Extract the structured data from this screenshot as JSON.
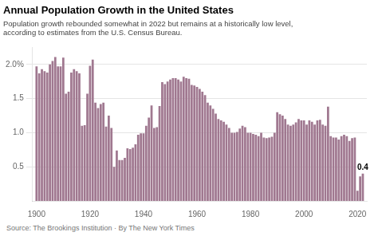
{
  "chart_data": {
    "type": "bar",
    "title": "Annual Population Growth in the United States",
    "subtitle": "Population growth rebounded somewhat in 2022 but remains at a historically low level,\naccording to estimates from the U.S. Census Bureau.",
    "source": "Source: The Brookings Institution   ·   By The New York Times",
    "color": "#a07890",
    "xlim": [
      1898.5,
      2023.5
    ],
    "xticks": [
      1900,
      1920,
      1940,
      1960,
      1980,
      2000,
      2020
    ],
    "ylim": [
      0,
      2.25
    ],
    "yticks": [
      0.5,
      {
        "value": 1.0,
        "label": "1.0"
      },
      1.5,
      {
        "value": 2.0,
        "label": "2.0%"
      }
    ],
    "grid": true,
    "annotations": [
      {
        "x": 2022,
        "y": 0.4,
        "text": "0.4"
      }
    ],
    "x": [
      1900,
      1901,
      1902,
      1903,
      1904,
      1905,
      1906,
      1907,
      1908,
      1909,
      1910,
      1911,
      1912,
      1913,
      1914,
      1915,
      1916,
      1917,
      1918,
      1919,
      1920,
      1921,
      1922,
      1923,
      1924,
      1925,
      1926,
      1927,
      1928,
      1929,
      1930,
      1931,
      1932,
      1933,
      1934,
      1935,
      1936,
      1937,
      1938,
      1939,
      1940,
      1941,
      1942,
      1943,
      1944,
      1945,
      1946,
      1947,
      1948,
      1949,
      1950,
      1951,
      1952,
      1953,
      1954,
      1955,
      1956,
      1957,
      1958,
      1959,
      1960,
      1961,
      1962,
      1963,
      1964,
      1965,
      1966,
      1967,
      1968,
      1969,
      1970,
      1971,
      1972,
      1973,
      1974,
      1975,
      1976,
      1977,
      1978,
      1979,
      1980,
      1981,
      1982,
      1983,
      1984,
      1985,
      1986,
      1987,
      1988,
      1989,
      1990,
      1991,
      1992,
      1993,
      1994,
      1995,
      1996,
      1997,
      1998,
      1999,
      2000,
      2001,
      2002,
      2003,
      2004,
      2005,
      2006,
      2007,
      2008,
      2009,
      2010,
      2011,
      2012,
      2013,
      2014,
      2015,
      2016,
      2017,
      2018,
      2019,
      2020,
      2021,
      2022
    ],
    "values": [
      1.97,
      1.87,
      1.93,
      1.9,
      1.88,
      2.0,
      2.05,
      2.11,
      1.97,
      1.97,
      2.1,
      1.57,
      1.6,
      1.88,
      1.93,
      1.9,
      1.87,
      1.1,
      1.11,
      1.57,
      1.98,
      2.07,
      1.44,
      1.36,
      1.42,
      1.44,
      1.09,
      1.25,
      1.07,
      0.5,
      0.74,
      0.6,
      0.6,
      0.63,
      0.77,
      0.76,
      0.78,
      0.83,
      0.97,
      0.99,
      0.99,
      1.1,
      1.22,
      1.4,
      1.07,
      1.08,
      1.39,
      1.74,
      1.71,
      1.75,
      1.78,
      1.8,
      1.8,
      1.78,
      1.75,
      1.82,
      1.8,
      1.79,
      1.7,
      1.69,
      1.67,
      1.64,
      1.6,
      1.55,
      1.44,
      1.4,
      1.35,
      1.28,
      1.2,
      1.18,
      1.16,
      1.12,
      1.07,
      1.0,
      1.0,
      1.01,
      1.06,
      1.1,
      1.08,
      1.0,
      1.0,
      0.98,
      0.97,
      0.95,
      1.0,
      0.93,
      0.92,
      0.93,
      0.94,
      1.0,
      1.3,
      1.27,
      1.25,
      1.2,
      1.12,
      1.1,
      1.12,
      1.15,
      1.2,
      1.18,
      1.18,
      1.12,
      1.18,
      1.16,
      1.12,
      1.18,
      1.19,
      1.12,
      1.1,
      1.38,
      0.95,
      0.93,
      0.93,
      0.9,
      0.95,
      0.97,
      0.95,
      0.88,
      0.92,
      0.93,
      0.15,
      0.36,
      0.4
    ]
  }
}
